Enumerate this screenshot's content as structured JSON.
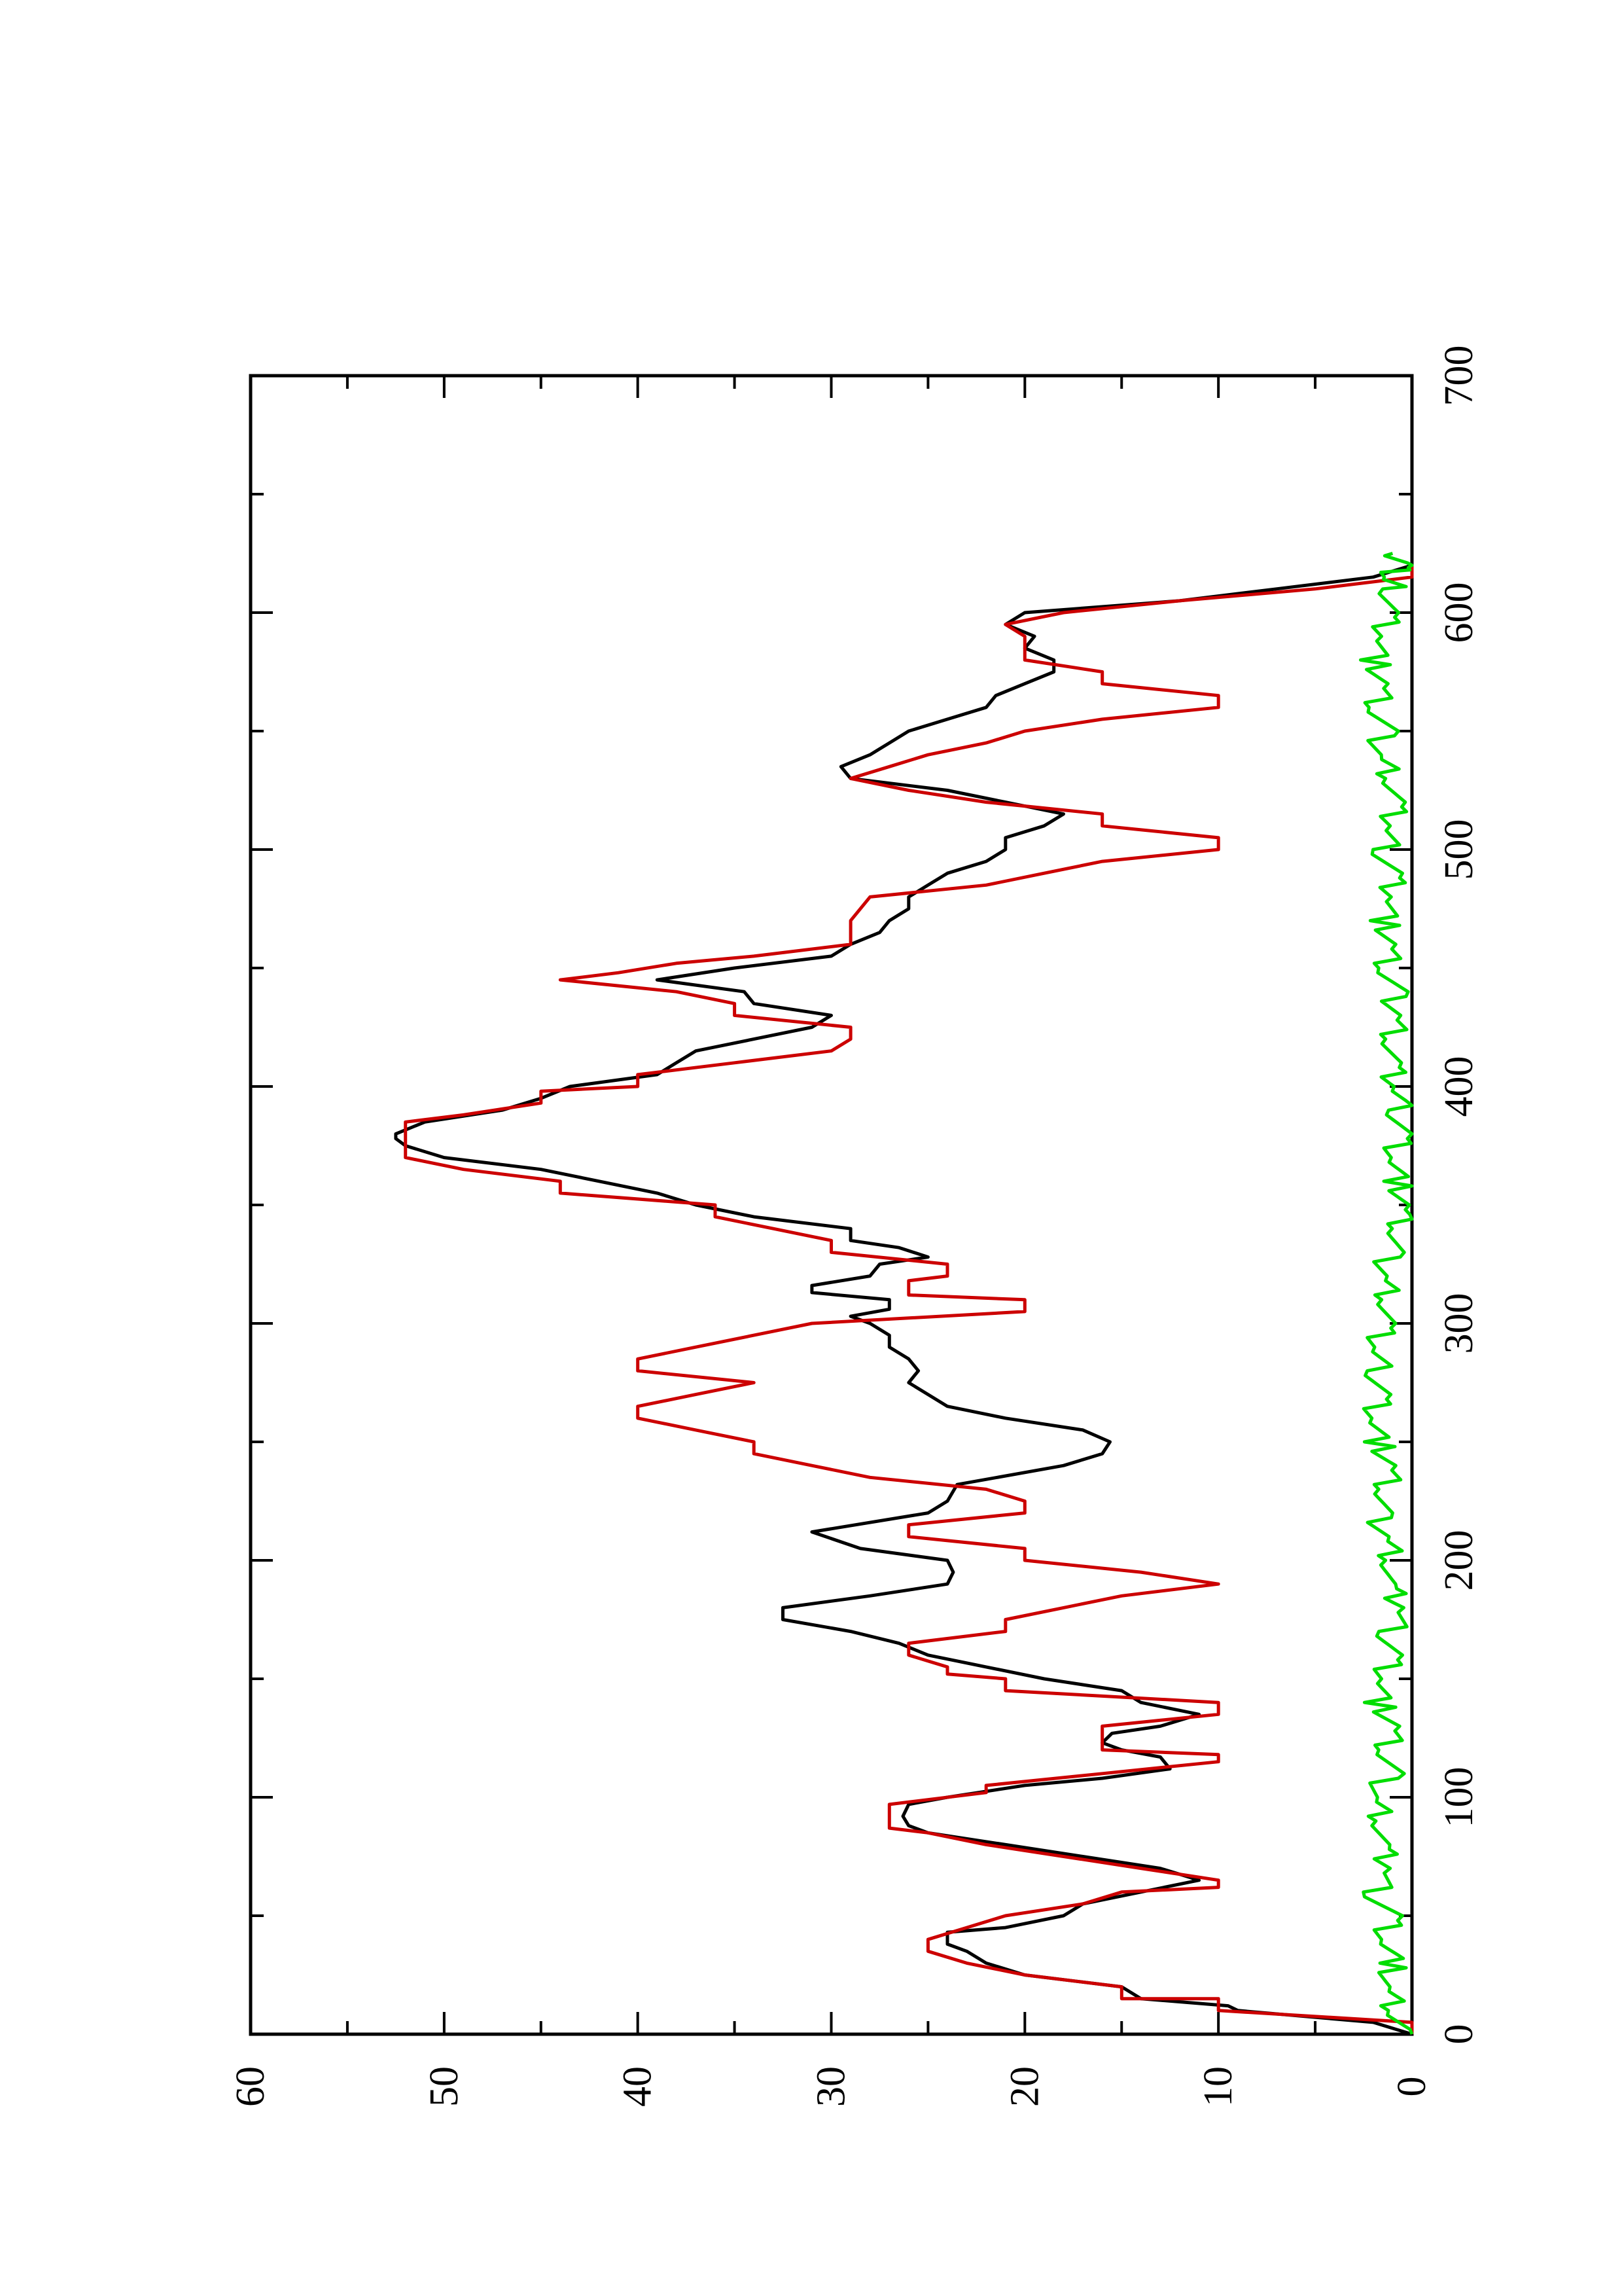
{
  "chart_data": {
    "type": "line",
    "orientation": "rotated-90-clockwise",
    "title": "",
    "xlabel": "",
    "ylabel": "",
    "xlim": [
      0,
      700
    ],
    "ylim": [
      0,
      60
    ],
    "x_major_ticks": [
      0,
      100,
      200,
      300,
      400,
      500,
      600,
      700
    ],
    "x_minor_ticks": [
      50,
      150,
      250,
      350,
      450,
      550,
      650
    ],
    "y_major_ticks": [
      0,
      10,
      20,
      30,
      40,
      50,
      60
    ],
    "y_minor_ticks": [
      5,
      15,
      25,
      35,
      45,
      55
    ],
    "x_tick_labels": [
      "0",
      "100",
      "200",
      "300",
      "400",
      "500",
      "600",
      "700"
    ],
    "y_tick_labels": [
      "0",
      "10",
      "20",
      "30",
      "40",
      "50",
      "60"
    ],
    "grid": false,
    "legend": "none",
    "series": [
      {
        "color": "#000000",
        "points": [
          [
            0,
            0
          ],
          [
            5,
            2
          ],
          [
            10,
            9
          ],
          [
            12,
            9.5
          ],
          [
            15,
            14
          ],
          [
            20,
            15
          ],
          [
            25,
            20
          ],
          [
            30,
            22
          ],
          [
            35,
            23
          ],
          [
            38,
            24
          ],
          [
            43,
            24
          ],
          [
            45,
            21
          ],
          [
            50,
            18
          ],
          [
            55,
            17
          ],
          [
            60,
            14
          ],
          [
            65,
            11
          ],
          [
            70,
            13
          ],
          [
            75,
            17
          ],
          [
            80,
            21
          ],
          [
            85,
            25
          ],
          [
            88,
            26
          ],
          [
            92,
            26.3
          ],
          [
            97,
            26
          ],
          [
            100,
            24
          ],
          [
            105,
            20
          ],
          [
            108,
            16
          ],
          [
            112,
            12.5
          ],
          [
            117,
            13
          ],
          [
            120,
            15
          ],
          [
            123,
            16
          ],
          [
            127,
            15.5
          ],
          [
            130,
            13
          ],
          [
            135,
            11
          ],
          [
            140,
            14
          ],
          [
            145,
            15
          ],
          [
            150,
            19
          ],
          [
            155,
            22
          ],
          [
            160,
            25
          ],
          [
            165,
            26.5
          ],
          [
            170,
            29
          ],
          [
            175,
            32.5
          ],
          [
            180,
            32.5
          ],
          [
            185,
            28
          ],
          [
            190,
            24
          ],
          [
            195,
            23.7
          ],
          [
            200,
            24
          ],
          [
            205,
            28.5
          ],
          [
            212,
            31
          ],
          [
            220,
            25
          ],
          [
            225,
            24
          ],
          [
            232,
            23.5
          ],
          [
            240,
            18
          ],
          [
            245,
            16
          ],
          [
            250,
            15.6
          ],
          [
            255,
            17
          ],
          [
            260,
            21
          ],
          [
            265,
            24
          ],
          [
            270,
            25
          ],
          [
            275,
            26
          ],
          [
            280,
            25.5
          ],
          [
            285,
            26
          ],
          [
            290,
            27
          ],
          [
            295,
            27
          ],
          [
            300,
            28
          ],
          [
            303,
            29
          ],
          [
            306,
            27
          ],
          [
            310,
            27
          ],
          [
            313,
            31
          ],
          [
            316,
            31
          ],
          [
            320,
            28
          ],
          [
            325,
            27.5
          ],
          [
            328,
            25
          ],
          [
            332,
            26.5
          ],
          [
            335,
            29
          ],
          [
            340,
            29
          ],
          [
            345,
            34
          ],
          [
            350,
            37
          ],
          [
            355,
            39
          ],
          [
            360,
            42
          ],
          [
            365,
            45
          ],
          [
            370,
            50
          ],
          [
            375,
            52
          ],
          [
            378,
            52.5
          ],
          [
            380,
            52.5
          ],
          [
            385,
            51
          ],
          [
            390,
            47
          ],
          [
            395,
            45
          ],
          [
            400,
            43.5
          ],
          [
            405,
            39
          ],
          [
            410,
            38
          ],
          [
            415,
            37
          ],
          [
            420,
            34
          ],
          [
            425,
            31
          ],
          [
            430,
            30
          ],
          [
            435,
            34
          ],
          [
            440,
            34.5
          ],
          [
            445,
            39
          ],
          [
            450,
            35
          ],
          [
            455,
            30
          ],
          [
            460,
            29
          ],
          [
            465,
            27.5
          ],
          [
            470,
            27
          ],
          [
            475,
            26
          ],
          [
            480,
            26
          ],
          [
            485,
            25
          ],
          [
            490,
            24
          ],
          [
            495,
            22
          ],
          [
            500,
            21
          ],
          [
            505,
            21
          ],
          [
            510,
            19
          ],
          [
            515,
            18
          ],
          [
            520,
            21
          ],
          [
            525,
            24
          ],
          [
            530,
            29
          ],
          [
            535,
            29.5
          ],
          [
            540,
            28
          ],
          [
            545,
            27
          ],
          [
            550,
            26
          ],
          [
            555,
            24
          ],
          [
            560,
            22
          ],
          [
            565,
            21.5
          ],
          [
            570,
            20
          ],
          [
            575,
            18.5
          ],
          [
            580,
            18.5
          ],
          [
            585,
            20
          ],
          [
            590,
            19.5
          ],
          [
            595,
            21
          ],
          [
            600,
            20
          ],
          [
            605,
            12
          ],
          [
            610,
            7
          ],
          [
            615,
            2
          ],
          [
            620,
            0
          ],
          [
            625,
            0
          ]
        ]
      },
      {
        "color": "#cc0000",
        "points": [
          [
            0,
            0
          ],
          [
            5,
            0
          ],
          [
            10,
            10
          ],
          [
            15,
            10
          ],
          [
            15,
            15
          ],
          [
            20,
            15
          ],
          [
            25,
            20
          ],
          [
            30,
            23
          ],
          [
            35,
            25
          ],
          [
            40,
            25
          ],
          [
            45,
            23
          ],
          [
            50,
            21
          ],
          [
            55,
            17
          ],
          [
            60,
            15
          ],
          [
            62,
            10
          ],
          [
            65,
            10
          ],
          [
            70,
            14
          ],
          [
            75,
            18
          ],
          [
            80,
            22
          ],
          [
            85,
            25
          ],
          [
            87,
            27
          ],
          [
            97,
            27
          ],
          [
            102,
            22
          ],
          [
            105,
            22
          ],
          [
            110,
            16
          ],
          [
            115,
            10
          ],
          [
            118,
            10
          ],
          [
            120,
            16
          ],
          [
            125,
            16
          ],
          [
            130,
            16
          ],
          [
            135,
            10
          ],
          [
            140,
            10
          ],
          [
            145,
            21
          ],
          [
            150,
            21
          ],
          [
            152,
            24
          ],
          [
            155,
            24
          ],
          [
            160,
            26
          ],
          [
            165,
            26
          ],
          [
            170,
            21
          ],
          [
            175,
            21
          ],
          [
            180,
            18
          ],
          [
            185,
            15
          ],
          [
            190,
            10
          ],
          [
            195,
            14
          ],
          [
            200,
            20
          ],
          [
            205,
            20
          ],
          [
            210,
            26
          ],
          [
            215,
            26
          ],
          [
            220,
            20
          ],
          [
            225,
            20
          ],
          [
            230,
            22
          ],
          [
            235,
            28
          ],
          [
            240,
            31
          ],
          [
            245,
            34
          ],
          [
            250,
            34
          ],
          [
            255,
            37
          ],
          [
            260,
            40
          ],
          [
            265,
            40
          ],
          [
            270,
            37
          ],
          [
            275,
            34
          ],
          [
            280,
            40
          ],
          [
            285,
            40
          ],
          [
            290,
            37
          ],
          [
            295,
            34
          ],
          [
            300,
            31
          ],
          [
            305,
            20
          ],
          [
            310,
            20
          ],
          [
            312,
            26
          ],
          [
            318,
            26
          ],
          [
            320,
            24
          ],
          [
            325,
            24
          ],
          [
            330,
            30
          ],
          [
            335,
            30
          ],
          [
            340,
            33
          ],
          [
            345,
            36
          ],
          [
            350,
            36
          ],
          [
            355,
            44
          ],
          [
            360,
            44
          ],
          [
            365,
            49
          ],
          [
            370,
            52
          ],
          [
            375,
            52
          ],
          [
            385,
            52
          ],
          [
            388,
            49
          ],
          [
            393,
            45
          ],
          [
            398,
            45
          ],
          [
            400,
            40
          ],
          [
            405,
            40
          ],
          [
            410,
            35
          ],
          [
            415,
            30
          ],
          [
            420,
            29
          ],
          [
            425,
            29
          ],
          [
            430,
            35
          ],
          [
            435,
            35
          ],
          [
            440,
            38
          ],
          [
            445,
            44
          ],
          [
            448,
            41
          ],
          [
            452,
            38
          ],
          [
            455,
            34
          ],
          [
            460,
            29
          ],
          [
            470,
            29
          ],
          [
            480,
            28
          ],
          [
            485,
            22
          ],
          [
            490,
            19
          ],
          [
            495,
            16
          ],
          [
            500,
            10
          ],
          [
            505,
            10
          ],
          [
            510,
            16
          ],
          [
            515,
            16
          ],
          [
            520,
            22
          ],
          [
            525,
            26
          ],
          [
            530,
            29
          ],
          [
            535,
            27
          ],
          [
            540,
            25
          ],
          [
            545,
            22
          ],
          [
            550,
            20
          ],
          [
            555,
            16
          ],
          [
            560,
            10
          ],
          [
            565,
            10
          ],
          [
            570,
            16
          ],
          [
            575,
            16
          ],
          [
            580,
            20
          ],
          [
            585,
            20
          ],
          [
            590,
            20
          ],
          [
            595,
            21
          ],
          [
            600,
            18
          ],
          [
            605,
            12
          ],
          [
            610,
            5
          ],
          [
            615,
            0
          ],
          [
            620,
            0
          ]
        ]
      },
      {
        "color": "#00dd00",
        "generation_rule": "noisy baseline near 0, amplitude about 0-2",
        "points": [
          [
            0,
            0.5
          ],
          [
            10,
            1
          ],
          [
            20,
            1.5
          ],
          [
            30,
            1
          ],
          [
            40,
            1.5
          ],
          [
            50,
            1
          ],
          [
            60,
            2
          ],
          [
            70,
            1.2
          ],
          [
            80,
            1.8
          ],
          [
            90,
            1.5
          ],
          [
            100,
            2
          ],
          [
            110,
            1.2
          ],
          [
            120,
            1.5
          ],
          [
            130,
            1
          ],
          [
            140,
            1.8
          ],
          [
            150,
            1.5
          ],
          [
            160,
            1
          ],
          [
            170,
            1.2
          ],
          [
            180,
            0.5
          ],
          [
            190,
            1.5
          ],
          [
            200,
            1
          ],
          [
            210,
            1.4
          ],
          [
            220,
            1.8
          ],
          [
            230,
            1.5
          ],
          [
            240,
            1.2
          ],
          [
            250,
            1.8
          ],
          [
            260,
            2
          ],
          [
            270,
            1.6
          ],
          [
            280,
            1.8
          ],
          [
            290,
            2
          ],
          [
            300,
            1.5
          ],
          [
            310,
            1.2
          ],
          [
            320,
            1.5
          ],
          [
            330,
            1.2
          ],
          [
            340,
            0.8
          ],
          [
            350,
            0.5
          ],
          [
            360,
            0.8
          ],
          [
            370,
            1
          ],
          [
            380,
            0.5
          ],
          [
            390,
            0.7
          ],
          [
            400,
            1
          ],
          [
            410,
            1.2
          ],
          [
            420,
            1
          ],
          [
            430,
            0.8
          ],
          [
            440,
            1
          ],
          [
            450,
            1.5
          ],
          [
            460,
            1.2
          ],
          [
            470,
            1.5
          ],
          [
            480,
            1
          ],
          [
            490,
            1
          ],
          [
            500,
            1.5
          ],
          [
            510,
            1.2
          ],
          [
            520,
            1
          ],
          [
            530,
            1
          ],
          [
            540,
            1.8
          ],
          [
            550,
            1.5
          ],
          [
            560,
            2
          ],
          [
            570,
            1.6
          ],
          [
            580,
            2
          ],
          [
            590,
            1.5
          ],
          [
            600,
            1.2
          ],
          [
            610,
            1
          ],
          [
            615,
            1.5
          ],
          [
            620,
            0.5
          ],
          [
            625,
            1
          ]
        ]
      }
    ]
  }
}
